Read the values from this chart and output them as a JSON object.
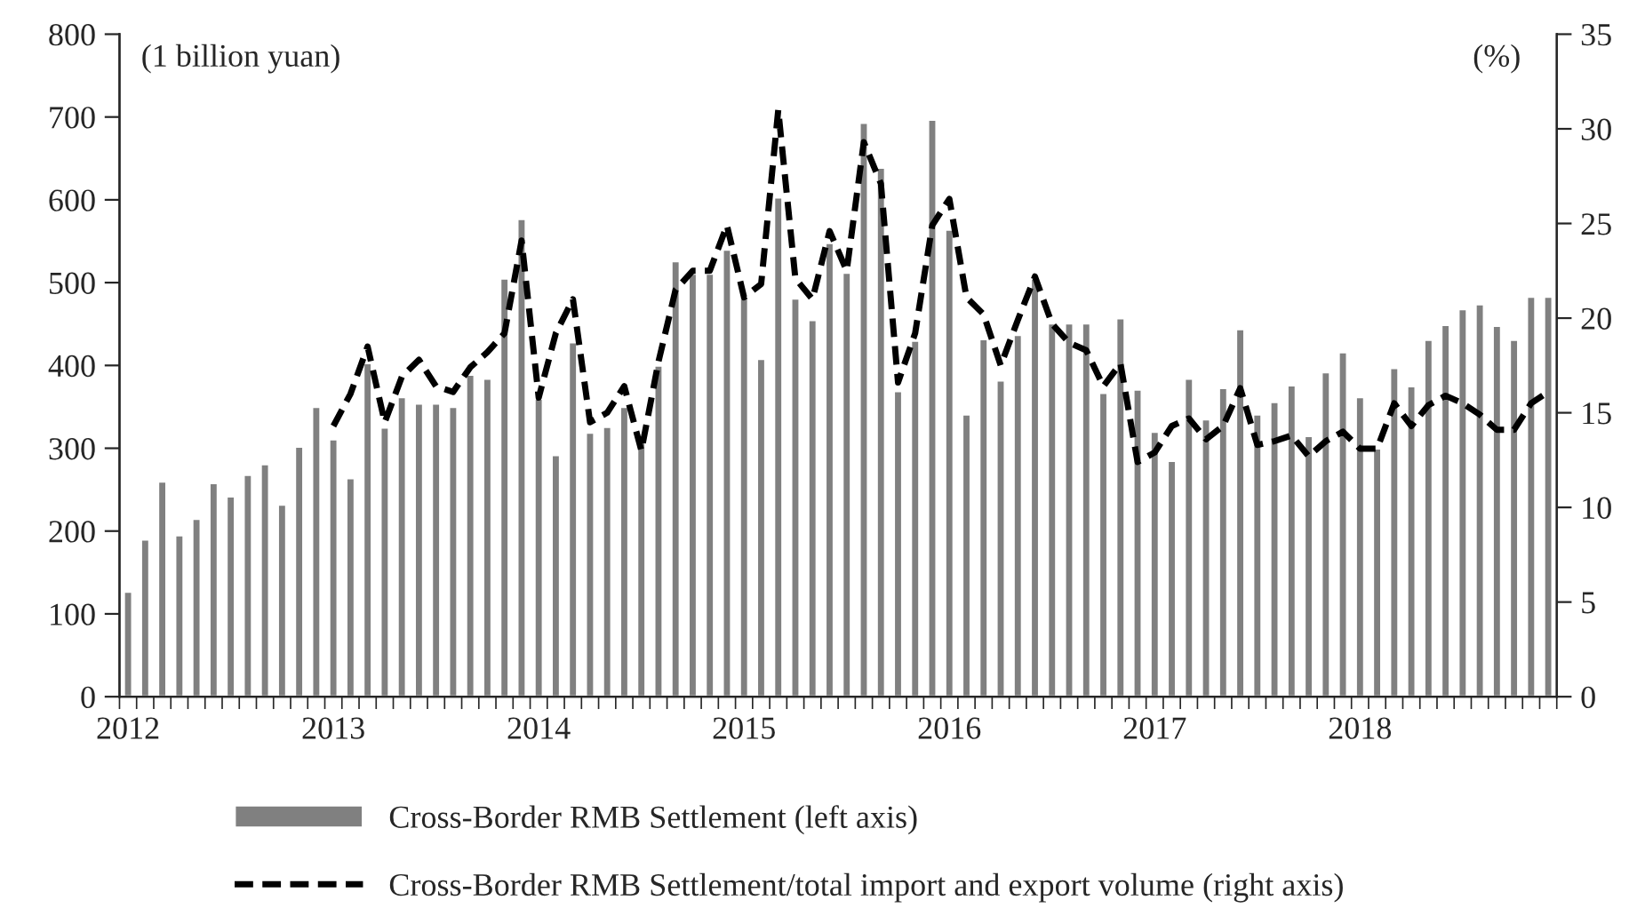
{
  "chart_data": {
    "type": "bar",
    "ylabel": "(1 billion yuan)",
    "y2label": "(%)",
    "categories": [
      "2012",
      null,
      null,
      null,
      null,
      null,
      null,
      null,
      null,
      null,
      null,
      null,
      "2013",
      null,
      null,
      null,
      null,
      null,
      null,
      null,
      null,
      null,
      null,
      null,
      "2014",
      null,
      null,
      null,
      null,
      null,
      null,
      null,
      null,
      null,
      null,
      null,
      "2015",
      null,
      null,
      null,
      null,
      null,
      null,
      null,
      null,
      null,
      null,
      null,
      "2016",
      null,
      null,
      null,
      null,
      null,
      null,
      null,
      null,
      null,
      null,
      null,
      "2017",
      null,
      null,
      null,
      null,
      null,
      null,
      null,
      null,
      null,
      null,
      null,
      "2018",
      null,
      null,
      null,
      null,
      null,
      null,
      null,
      null,
      null,
      null,
      null
    ],
    "series": [
      {
        "name": "Cross-Border RMB Settlement (left axis)",
        "color": "#808080",
        "values": [
          127,
          190,
          260,
          195,
          215,
          258,
          242,
          268,
          281,
          232,
          302,
          350,
          311,
          264,
          403,
          325,
          362,
          354,
          354,
          350,
          389,
          384,
          505,
          577,
          360,
          292,
          428,
          319,
          326,
          350,
          309,
          400,
          526,
          511,
          511,
          540,
          483,
          408,
          603,
          481,
          455,
          548,
          512,
          693,
          639,
          369,
          430,
          697,
          564,
          341,
          432,
          382,
          437,
          505,
          451,
          451,
          451,
          367,
          457,
          371,
          320,
          285,
          384,
          335,
          373,
          444,
          341,
          356,
          376,
          315,
          392,
          416,
          362,
          300,
          397,
          375,
          431,
          449,
          468,
          474,
          448,
          431,
          483,
          483
        ]
      },
      {
        "name": "Cross-Border RMB Settlement/total import and export volume (right axis)",
        "type": "line",
        "axis": "y2",
        "color": "#000000",
        "line_style": "dashed",
        "values": [
          null,
          null,
          null,
          null,
          null,
          null,
          null,
          null,
          null,
          null,
          null,
          null,
          14.3,
          16.0,
          18.5,
          14.5,
          16.9,
          17.8,
          16.4,
          16.1,
          17.4,
          18.2,
          19.2,
          24.1,
          15.8,
          19.2,
          21.0,
          14.5,
          15.0,
          16.4,
          13.0,
          17.7,
          21.5,
          22.5,
          22.5,
          24.9,
          21.1,
          21.8,
          31.0,
          22.1,
          21.0,
          24.6,
          22.5,
          29.3,
          27.1,
          16.6,
          19.2,
          24.9,
          26.3,
          21.1,
          20.2,
          17.5,
          19.9,
          22.2,
          19.7,
          18.7,
          18.3,
          16.4,
          17.6,
          12.4,
          12.9,
          14.3,
          14.7,
          13.6,
          14.3,
          16.3,
          13.3,
          13.5,
          13.8,
          12.7,
          13.5,
          14.0,
          13.1,
          13.1,
          15.5,
          14.3,
          15.4,
          15.9,
          15.5,
          14.9,
          14.1,
          14.1,
          15.5,
          16.1
        ]
      }
    ],
    "ylim": [
      0,
      800
    ],
    "yticks": [
      0,
      100,
      200,
      300,
      400,
      500,
      600,
      700,
      800
    ],
    "y2lim": [
      0,
      35
    ],
    "y2ticks": [
      0,
      5,
      10,
      15,
      20,
      25,
      30,
      35
    ],
    "grid": false,
    "legend": "bottom"
  }
}
